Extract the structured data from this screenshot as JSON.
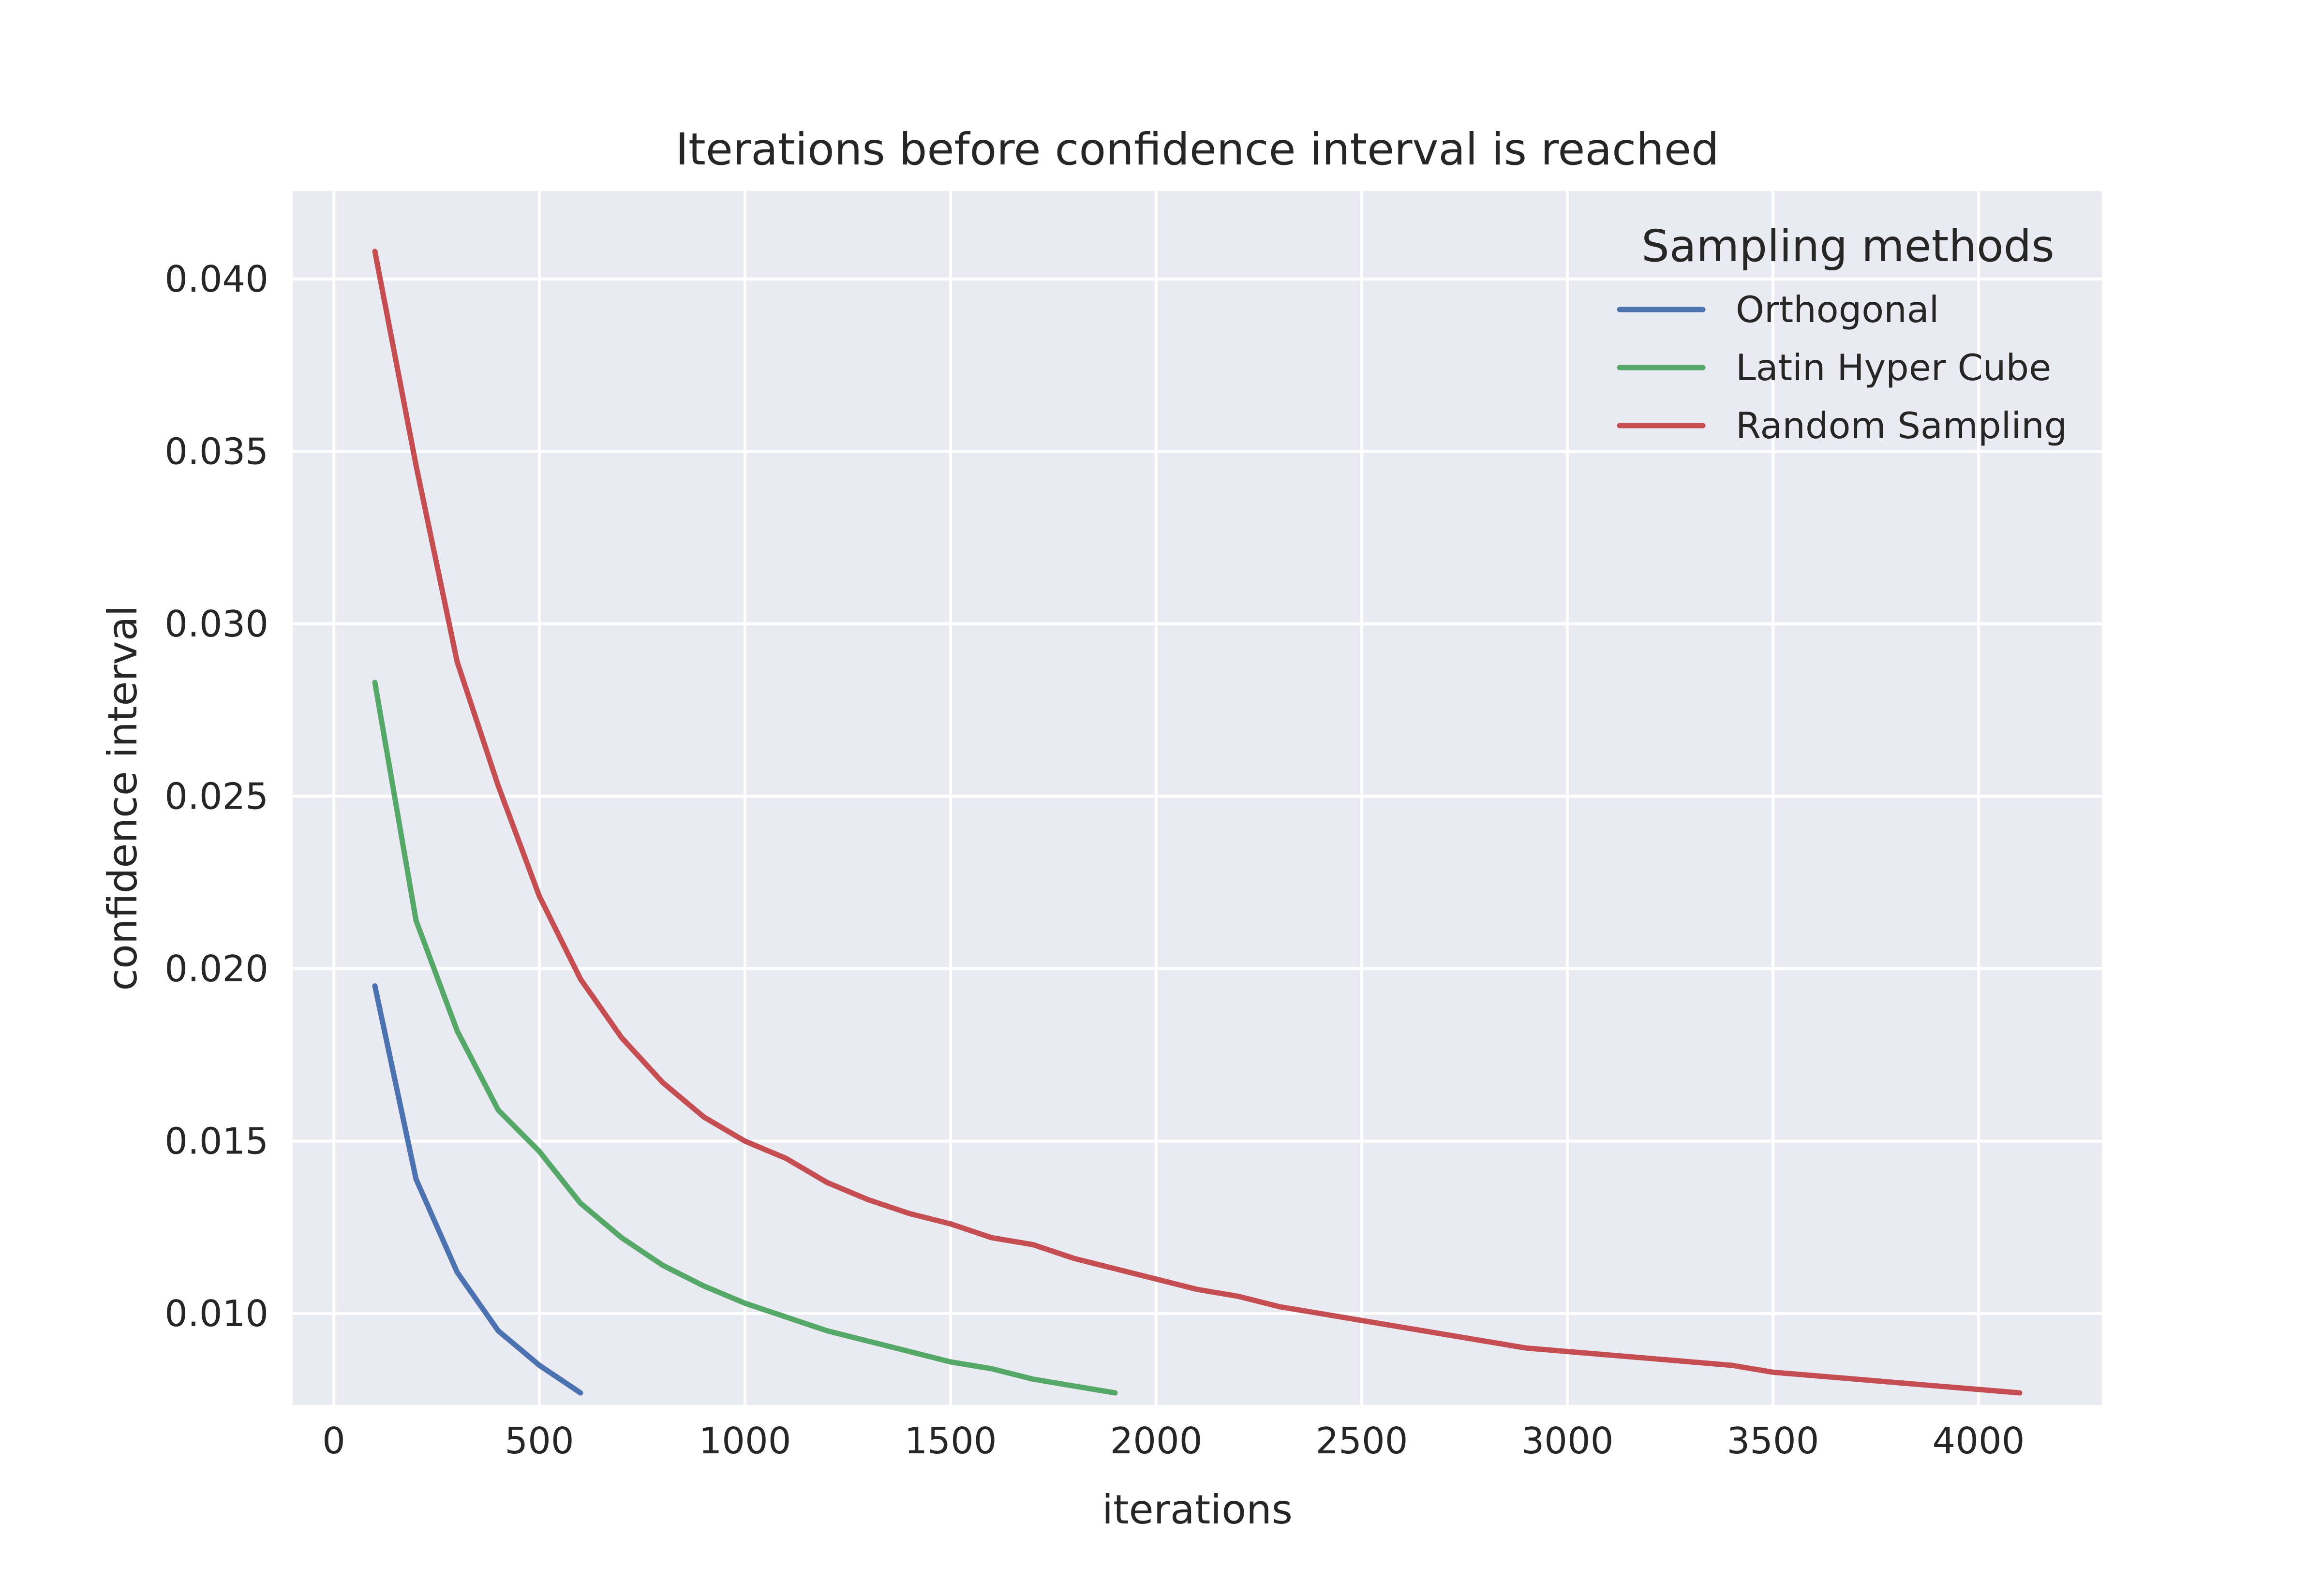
{
  "chart_data": {
    "type": "line",
    "title": "Iterations before confidence interval is reached",
    "xlabel": "iterations",
    "ylabel": "confidence interval",
    "xlim": [
      -100,
      4300
    ],
    "ylim": [
      0.00735,
      0.04255
    ],
    "x_ticks": [
      0,
      500,
      1000,
      1500,
      2000,
      2500,
      3000,
      3500,
      4000
    ],
    "x_tick_labels": [
      "0",
      "500",
      "1000",
      "1500",
      "2000",
      "2500",
      "3000",
      "3500",
      "4000"
    ],
    "y_ticks": [
      0.01,
      0.015,
      0.02,
      0.025,
      0.03,
      0.035,
      0.04
    ],
    "y_tick_labels": [
      "0.010",
      "0.015",
      "0.020",
      "0.025",
      "0.030",
      "0.035",
      "0.040"
    ],
    "grid": true,
    "background": "#EAEAF2",
    "legend": {
      "title": "Sampling methods",
      "position": "top-right"
    },
    "series": [
      {
        "name": "Orthogonal",
        "color": "#4C72B0",
        "x": [
          100,
          200,
          300,
          400,
          500,
          600
        ],
        "y": [
          0.0195,
          0.0139,
          0.0112,
          0.0095,
          0.0085,
          0.0077
        ]
      },
      {
        "name": "Latin Hyper Cube",
        "color": "#55A868",
        "x": [
          100,
          200,
          300,
          400,
          500,
          600,
          700,
          800,
          900,
          1000,
          1100,
          1200,
          1300,
          1400,
          1500,
          1600,
          1700,
          1800,
          1900
        ],
        "y": [
          0.0283,
          0.0214,
          0.0182,
          0.0159,
          0.0147,
          0.0132,
          0.0122,
          0.0114,
          0.0108,
          0.0103,
          0.0099,
          0.0095,
          0.0092,
          0.0089,
          0.0086,
          0.0084,
          0.0081,
          0.0079,
          0.0077
        ]
      },
      {
        "name": "Random Sampling",
        "color": "#C44E52",
        "x": [
          100,
          200,
          300,
          400,
          500,
          600,
          700,
          800,
          900,
          1000,
          1100,
          1200,
          1300,
          1400,
          1500,
          1600,
          1700,
          1800,
          1900,
          2000,
          2100,
          2200,
          2300,
          2400,
          2500,
          2600,
          2700,
          2800,
          2900,
          3000,
          3100,
          3200,
          3300,
          3400,
          3500,
          3600,
          3700,
          3800,
          3900,
          4000,
          4100
        ],
        "y": [
          0.0408,
          0.0346,
          0.0289,
          0.0253,
          0.0221,
          0.0197,
          0.018,
          0.0167,
          0.0157,
          0.015,
          0.0145,
          0.0138,
          0.0133,
          0.0129,
          0.0126,
          0.0122,
          0.012,
          0.0116,
          0.0113,
          0.011,
          0.0107,
          0.0105,
          0.0102,
          0.01,
          0.0098,
          0.0096,
          0.0094,
          0.0092,
          0.009,
          0.0089,
          0.0088,
          0.0087,
          0.0086,
          0.0085,
          0.0083,
          0.0082,
          0.0081,
          0.008,
          0.0079,
          0.0078,
          0.0077
        ]
      }
    ]
  }
}
